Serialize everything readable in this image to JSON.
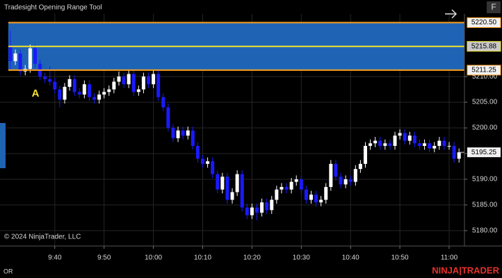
{
  "chart_data": {
    "type": "candlestick",
    "title": "Tradesight Opening Range Tool",
    "copyright": "© 2024 NinjaTrader, LLC",
    "footer_tab": "OR",
    "brand": "NINJA|TRADER",
    "button": "F",
    "annotation": "A",
    "up_color": "#ffffff",
    "down_color": "#1a1aff",
    "grid": true,
    "categories": [
      null,
      null,
      null,
      null,
      null,
      null,
      null,
      null,
      null,
      "9:40",
      null,
      null,
      null,
      null,
      null,
      null,
      null,
      null,
      null,
      "9:50",
      null,
      null,
      null,
      null,
      null,
      null,
      null,
      null,
      null,
      "10:00",
      null,
      null,
      null,
      null,
      null,
      null,
      null,
      null,
      null,
      "10:10",
      null,
      null,
      null,
      null,
      null,
      null,
      null,
      null,
      null,
      "10:20",
      null,
      null,
      null,
      null,
      null,
      null,
      null,
      null,
      null,
      "10:30",
      null,
      null,
      null,
      null,
      null,
      null,
      null,
      null,
      null,
      "10:40",
      null,
      null,
      null,
      null,
      null,
      null,
      null,
      null,
      null,
      "10:50",
      null,
      null,
      null,
      null,
      null,
      null,
      null,
      null,
      null,
      "11:00",
      null,
      null
    ],
    "open": [
      5216,
      5213,
      5214.5,
      5211,
      5211.5,
      5215.5,
      5212.5,
      5210,
      5209.5,
      5209,
      5207.5,
      5205.5,
      5208,
      5209.5,
      5207,
      5206.5,
      5208.5,
      5206,
      5205.5,
      5206.5,
      5207,
      5207.5,
      5209,
      5210,
      5208.5,
      5210.5,
      5207,
      5207.5,
      5210,
      5208.5,
      5210.5,
      5206,
      5204,
      5200,
      5198,
      5199.5,
      5198.5,
      5199.5,
      5196.5,
      5194,
      5193,
      5193.5,
      5191,
      5188,
      5190.5,
      5186,
      5187.5,
      5191,
      5184.5,
      5183,
      5184.5,
      5183.5,
      5185.5,
      5184,
      5186,
      5188,
      5188.5,
      5188,
      5189.5,
      5190,
      5188,
      5186,
      5187,
      5185.5,
      5186,
      5188.5,
      5193,
      5190.5,
      5189,
      5190,
      5189.5,
      5192,
      5193,
      5196.5,
      5197,
      5197.5,
      5196.5,
      5197,
      5196.5,
      5198.5,
      5199,
      5197.5,
      5198.5,
      5197,
      5196.5,
      5197,
      5196,
      5196.5,
      5197.5,
      5196.5,
      5196.5,
      5194
    ],
    "high": [
      5219,
      5215.25,
      5215.25,
      5212.25,
      5216.25,
      5216.25,
      5213.25,
      5210.75,
      5212,
      5209.75,
      5208.25,
      5208.75,
      5210.25,
      5210.25,
      5207.75,
      5209.25,
      5209.25,
      5206.75,
      5207.25,
      5207.75,
      5208.25,
      5209.75,
      5211,
      5210.75,
      5211.25,
      5211.25,
      5208.25,
      5210.75,
      5210.75,
      5211.25,
      5211.25,
      5206.75,
      5204.75,
      5200.75,
      5200.25,
      5200.25,
      5200.25,
      5200.25,
      5197.25,
      5194.75,
      5194.25,
      5194.25,
      5191.75,
      5191.25,
      5191.25,
      5188.25,
      5191.75,
      5191.75,
      5185.25,
      5185.25,
      5185.25,
      5186.25,
      5186.25,
      5186.75,
      5188.75,
      5189.25,
      5189.25,
      5190.25,
      5190.75,
      5190.75,
      5188.75,
      5187.75,
      5187.75,
      5186.75,
      5189.25,
      5193.75,
      5193.75,
      5191.25,
      5190.75,
      5190.75,
      5192.75,
      5193.75,
      5197.25,
      5197.75,
      5198.25,
      5198.25,
      5197.75,
      5197.75,
      5199.25,
      5199.75,
      5199.75,
      5199.25,
      5199.25,
      5197.75,
      5197.75,
      5197.75,
      5197.25,
      5198.25,
      5198.25,
      5197.25,
      5197.25,
      5196
    ],
    "low": [
      5211.5,
      5212.25,
      5210.25,
      5210.25,
      5210.75,
      5211.75,
      5209.25,
      5208.75,
      5208.25,
      5206.75,
      5204,
      5204.75,
      5207.25,
      5206.25,
      5205.75,
      5205.75,
      5205.25,
      5204.75,
      5204.75,
      5205.75,
      5206.25,
      5206.75,
      5208.25,
      5207.75,
      5207.75,
      5206.25,
      5206.25,
      5206.75,
      5207.75,
      5207.75,
      5205.25,
      5203.25,
      5199.25,
      5197.25,
      5197.25,
      5197.75,
      5197.75,
      5195.75,
      5193.25,
      5192.25,
      5192.25,
      5190.25,
      5187.25,
      5187.25,
      5185.25,
      5185.25,
      5186.75,
      5183.75,
      5182.25,
      5182.25,
      5182,
      5182.75,
      5183.25,
      5183.25,
      5185.25,
      5187.25,
      5187.25,
      5187.25,
      5188.75,
      5187.25,
      5185.25,
      5185.25,
      5184.75,
      5184.75,
      5185.25,
      5187.75,
      5189.75,
      5188.25,
      5188.25,
      5188.75,
      5188.75,
      5191.25,
      5192.25,
      5195.75,
      5196.25,
      5195.75,
      5195.75,
      5195.75,
      5195.75,
      5197.75,
      5196.75,
      5196.75,
      5196.25,
      5195.75,
      5195.75,
      5195.25,
      5195.25,
      5195.75,
      5195.75,
      5195.75,
      5193.25,
      5193.25
    ],
    "close": [
      5213,
      5214.5,
      5211,
      5211.5,
      5215.5,
      5212.5,
      5210,
      5209.5,
      5209,
      5207.5,
      5205.5,
      5208,
      5209.5,
      5207,
      5206.5,
      5208.5,
      5206,
      5205.5,
      5206.5,
      5207,
      5207.5,
      5209,
      5210,
      5208.5,
      5210.5,
      5207,
      5207.5,
      5210,
      5208.5,
      5210.5,
      5206,
      5204,
      5200,
      5198,
      5199.5,
      5198.5,
      5199.5,
      5196.5,
      5194,
      5193,
      5193.5,
      5191,
      5188,
      5190.5,
      5186,
      5187.5,
      5191,
      5184.5,
      5183,
      5184.5,
      5183.5,
      5185.5,
      5184,
      5186,
      5188,
      5188.5,
      5188,
      5189.5,
      5190,
      5188,
      5186,
      5187,
      5185.5,
      5186,
      5188.5,
      5193,
      5190.5,
      5189,
      5190,
      5189.5,
      5192,
      5193,
      5196.5,
      5197,
      5197.5,
      5196.5,
      5197,
      5196.5,
      5198.5,
      5199,
      5197.5,
      5198.5,
      5197,
      5196.5,
      5197,
      5196,
      5196.5,
      5197.5,
      5196.5,
      5196.5,
      5194,
      5195.25
    ],
    "ylim": [
      5177,
      5222.2
    ],
    "yticks": [
      {
        "value": 5180,
        "label": "5180.00"
      },
      {
        "value": 5185,
        "label": "5185.00"
      },
      {
        "value": 5190,
        "label": "5190.00"
      },
      {
        "value": 5195,
        "label": "5195.00"
      },
      {
        "value": 5200,
        "label": "5200.00"
      },
      {
        "value": 5205,
        "label": "5205.00"
      },
      {
        "value": 5210,
        "label": "5210.00"
      }
    ],
    "range_fill": "#1f64b4",
    "levels": [
      {
        "value": 5220.5,
        "label": "5220.50",
        "color": "#ff9f1c"
      },
      {
        "value": 5215.88,
        "label": "5215.88",
        "color": "#f2e52c"
      },
      {
        "value": 5211.25,
        "label": "5211.25",
        "color": "#ff9f1c"
      }
    ],
    "last_price": {
      "value": 5195.25,
      "label": "5195.25"
    }
  }
}
